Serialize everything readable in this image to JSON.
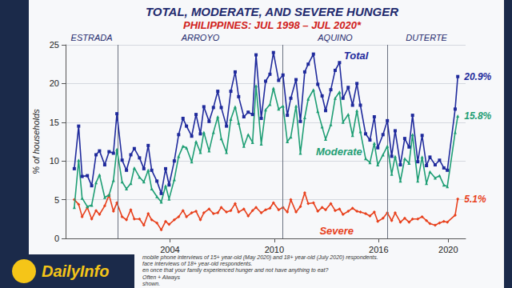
{
  "chart_data": {
    "type": "line",
    "title": "TOTAL, MODERATE, AND SEVERE HUNGER",
    "subtitle": "PHILIPPINES: JUL 1998 – JUL 2020*",
    "y_label": "% of households",
    "periods": [
      {
        "label": "ESTRADA",
        "start": 1998,
        "end": 2001
      },
      {
        "label": "ARROYO",
        "start": 2001,
        "end": 2010.5
      },
      {
        "label": "AQUINO",
        "start": 2010.5,
        "end": 2016.5
      },
      {
        "label": "DUTERTE",
        "start": 2016.5,
        "end": 2021
      }
    ],
    "notes": [
      "mobile phone interviews of 15+ year-old (May 2020) and 18+ year-old (July 2020) respondents.",
      "face interviews of 18+ year-old respondents.",
      "en once that your family experienced hunger and not have anything to eat?",
      "Often + Always",
      "shown."
    ],
    "logo": "DailyInfo",
    "xlim": [
      1998,
      2021
    ],
    "xticks": [
      2004,
      2010,
      2016,
      2020
    ],
    "ylim": [
      0,
      25
    ],
    "yticks": [
      0,
      5,
      10,
      15,
      20,
      25
    ],
    "grid": true,
    "data_labels": true,
    "x": [
      1998.5,
      1998.75,
      1998.95,
      1999.25,
      1999.5,
      1999.75,
      1999.95,
      2000.25,
      2000.5,
      2000.75,
      2000.95,
      2001.25,
      2001.5,
      2001.75,
      2001.95,
      2002.25,
      2002.5,
      2002.75,
      2002.95,
      2003.25,
      2003.5,
      2003.75,
      2003.95,
      2004.25,
      2004.5,
      2004.75,
      2004.95,
      2005.25,
      2005.5,
      2005.75,
      2005.95,
      2006.25,
      2006.5,
      2006.75,
      2006.95,
      2007.25,
      2007.5,
      2007.75,
      2007.95,
      2008.25,
      2008.5,
      2008.75,
      2008.95,
      2009.25,
      2009.5,
      2009.75,
      2009.95,
      2010.25,
      2010.5,
      2010.75,
      2010.95,
      2011.25,
      2011.5,
      2011.75,
      2011.95,
      2012.25,
      2012.5,
      2012.75,
      2012.95,
      2013.25,
      2013.5,
      2013.75,
      2013.95,
      2014.25,
      2014.5,
      2014.75,
      2014.95,
      2015.25,
      2015.5,
      2015.75,
      2015.95,
      2016.25,
      2016.5,
      2016.75,
      2016.95,
      2017.25,
      2017.5,
      2017.75,
      2017.95,
      2018.25,
      2018.5,
      2018.75,
      2018.95,
      2019.25,
      2019.5,
      2019.75,
      2019.95,
      2020.4,
      2020.55
    ],
    "series": [
      {
        "name": "Total",
        "color": "#1f2a9c",
        "marker": "square",
        "values": [
          9.0,
          14.5,
          8.0,
          8.1,
          6.8,
          10.8,
          11.3,
          9.5,
          11.2,
          11.0,
          16.1,
          10.1,
          8.8,
          10.8,
          11.6,
          10.4,
          9.0,
          12.0,
          8.8,
          7.4,
          5.8,
          9.0,
          6.9,
          10.0,
          13.4,
          15.5,
          14.5,
          13.2,
          16.0,
          13.5,
          17.0,
          15.1,
          16.9,
          19.0,
          16.9,
          14.5,
          19.0,
          21.5,
          18.3,
          15.7,
          16.3,
          16.0,
          23.7,
          15.5,
          20.3,
          21.2,
          24.0,
          20.4,
          21.1,
          15.9,
          18.1,
          20.5,
          15.1,
          21.5,
          22.5,
          23.8,
          19.9,
          18.4,
          16.5,
          19.2,
          21.7,
          22.7,
          18.1,
          19.5,
          17.2,
          20.0,
          17.2,
          13.5,
          12.7,
          15.7,
          11.7,
          13.4,
          15.2,
          10.6,
          13.9,
          9.5,
          12.9,
          11.8,
          15.9,
          9.9,
          13.3,
          9.4,
          10.5,
          9.5,
          10.1,
          9.1,
          8.8,
          16.7,
          20.9
        ],
        "value_labels": [
          null,
          null,
          null,
          null,
          null,
          null,
          null,
          null,
          null,
          null,
          null,
          null,
          null,
          null,
          null,
          null,
          null,
          null,
          null,
          null,
          null,
          null,
          null,
          null,
          null,
          null,
          null,
          null,
          null,
          null,
          null,
          null,
          null,
          null,
          null,
          null,
          null,
          null,
          null,
          null,
          null,
          null,
          null,
          null,
          null,
          null,
          null,
          null,
          null,
          null,
          null,
          null,
          null,
          null,
          null,
          null,
          null,
          null,
          null,
          null,
          null,
          null,
          null,
          null,
          null,
          null,
          null,
          null,
          null,
          null,
          null,
          null,
          null,
          null,
          null,
          null,
          null,
          null,
          null,
          null,
          null,
          null,
          null,
          null,
          null,
          null,
          null,
          null,
          "20.9%"
        ]
      },
      {
        "name": "Moderate",
        "color": "#1e9e74",
        "marker": "triangle",
        "values": [
          4.0,
          10.1,
          5.2,
          4.1,
          4.3,
          7.2,
          8.2,
          5.3,
          5.6,
          7.5,
          11.5,
          7.3,
          6.4,
          7.1,
          9.1,
          7.9,
          7.3,
          8.8,
          6.4,
          5.4,
          4.7,
          6.8,
          5.1,
          7.6,
          10.6,
          11.9,
          11.7,
          9.9,
          12.5,
          11.1,
          13.7,
          11.3,
          13.7,
          15.7,
          12.9,
          11.1,
          15.4,
          17.0,
          14.9,
          11.9,
          13.4,
          12.4,
          19.7,
          12.2,
          16.6,
          17.3,
          19.4,
          16.7,
          17.1,
          12.5,
          13.1,
          17.1,
          11.0,
          15.6,
          18.0,
          19.2,
          16.4,
          14.4,
          12.8,
          14.7,
          18.1,
          18.9,
          15.0,
          16.0,
          13.3,
          16.5,
          13.8,
          10.3,
          9.8,
          12.3,
          9.5,
          10.8,
          11.9,
          8.3,
          10.6,
          7.4,
          10.3,
          9.7,
          13.4,
          7.4,
          10.5,
          7.1,
          8.6,
          7.8,
          8.1,
          6.9,
          6.7,
          13.7,
          15.8
        ],
        "value_labels": [
          null,
          null,
          null,
          null,
          null,
          null,
          null,
          null,
          null,
          null,
          null,
          null,
          null,
          null,
          null,
          null,
          null,
          null,
          null,
          null,
          null,
          null,
          null,
          null,
          null,
          null,
          null,
          null,
          null,
          null,
          null,
          null,
          null,
          null,
          null,
          null,
          null,
          null,
          null,
          null,
          null,
          null,
          null,
          null,
          null,
          null,
          null,
          null,
          null,
          null,
          null,
          null,
          null,
          null,
          null,
          null,
          null,
          null,
          null,
          null,
          null,
          null,
          null,
          null,
          null,
          null,
          null,
          null,
          null,
          null,
          null,
          null,
          null,
          null,
          null,
          null,
          null,
          null,
          null,
          null,
          null,
          null,
          null,
          null,
          null,
          null,
          null,
          null,
          "15.8%"
        ]
      },
      {
        "name": "Severe",
        "color": "#e8401c",
        "marker": "diamond",
        "values": [
          5.0,
          4.4,
          2.8,
          4.0,
          2.5,
          3.6,
          3.1,
          4.2,
          5.6,
          3.5,
          4.6,
          2.8,
          2.4,
          3.7,
          2.5,
          2.5,
          1.7,
          3.2,
          2.4,
          2.0,
          1.1,
          2.2,
          1.8,
          2.4,
          2.8,
          3.6,
          2.8,
          3.3,
          3.5,
          2.4,
          3.3,
          3.8,
          3.2,
          3.3,
          4.0,
          3.4,
          3.6,
          4.5,
          3.4,
          3.8,
          2.9,
          3.6,
          4.0,
          3.3,
          3.7,
          3.9,
          4.6,
          3.7,
          4.0,
          3.4,
          5.0,
          3.4,
          4.1,
          5.9,
          4.5,
          4.6,
          3.5,
          4.0,
          3.7,
          4.5,
          3.6,
          3.8,
          3.1,
          3.5,
          3.9,
          3.5,
          3.4,
          3.2,
          2.9,
          3.4,
          2.2,
          2.6,
          3.3,
          2.3,
          3.3,
          2.1,
          2.6,
          2.1,
          2.5,
          2.5,
          2.8,
          2.3,
          1.9,
          1.7,
          2.0,
          2.2,
          2.1,
          3.0,
          5.1
        ],
        "value_labels": [
          null,
          null,
          null,
          null,
          null,
          null,
          null,
          null,
          null,
          null,
          null,
          null,
          null,
          null,
          null,
          null,
          null,
          null,
          null,
          null,
          null,
          null,
          null,
          null,
          null,
          null,
          null,
          null,
          null,
          null,
          null,
          null,
          null,
          null,
          null,
          null,
          null,
          null,
          null,
          null,
          null,
          null,
          null,
          null,
          null,
          null,
          null,
          null,
          null,
          null,
          null,
          null,
          null,
          null,
          null,
          null,
          null,
          null,
          null,
          null,
          null,
          null,
          null,
          null,
          null,
          null,
          null,
          null,
          null,
          null,
          null,
          null,
          null,
          null,
          null,
          null,
          null,
          null,
          null,
          null,
          null,
          null,
          null,
          null,
          null,
          null,
          null,
          null,
          "5.1%"
        ]
      }
    ]
  }
}
